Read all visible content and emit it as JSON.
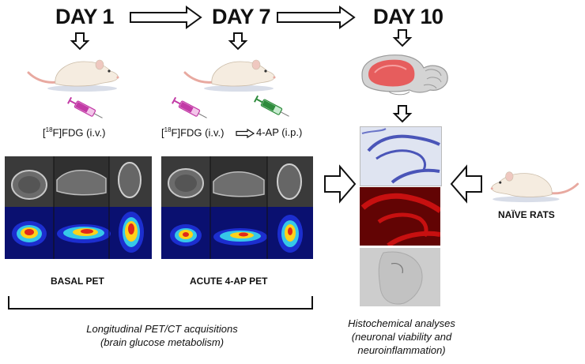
{
  "timeline": {
    "day1": "DAY 1",
    "day7": "DAY 7",
    "day10": "DAY 10"
  },
  "injections": {
    "day1": {
      "tracer_sup": "18",
      "tracer": "F]FDG (i.v.)",
      "prefix": "["
    },
    "day7": {
      "prefix": "[",
      "tracer_sup": "18",
      "tracer": "F]FDG (i.v.)",
      "drug": "4-AP (i.p.)"
    }
  },
  "scans": {
    "basal_label": "BASAL PET",
    "acute_label": "ACUTE 4-AP PET"
  },
  "naive_label": "NAÏVE RATS",
  "captions": {
    "pet_line1": "Longitudinal PET/CT acquisitions",
    "pet_line2": "(brain glucose metabolism)",
    "histo_line1": "Histochemical analyses",
    "histo_line2": "(neuronal viability and",
    "histo_line3": "neuroinflammation)"
  },
  "colors": {
    "syringe_pink": "#c23aa6",
    "syringe_green": "#2e8b3c",
    "rat_body": "#f5ece0",
    "rat_tail": "#e8a9a0",
    "histo_blue": "#4a55b8",
    "histo_red": "#d41414",
    "brain_red": "#e85050"
  },
  "icons": [
    "arrow-right-icon",
    "arrow-down-icon",
    "rat-icon",
    "syringe-icon",
    "brain-icon"
  ]
}
